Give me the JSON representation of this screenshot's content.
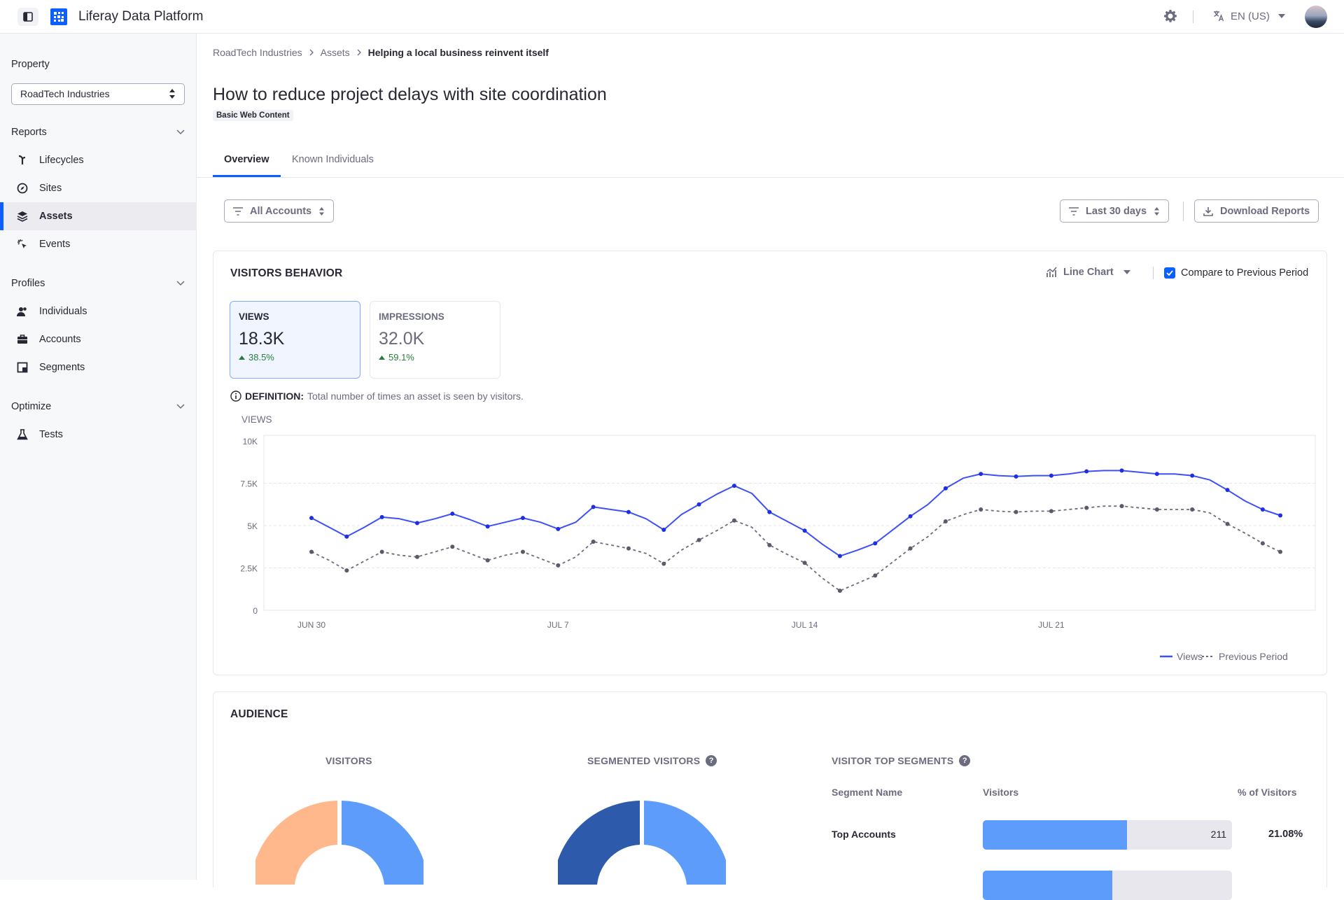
{
  "app": {
    "title": "Liferay Data Platform"
  },
  "topbar": {
    "language": "EN (US)"
  },
  "sidebar": {
    "property_label": "Property",
    "property_value": "RoadTech Industries",
    "sections": [
      {
        "label": "Reports",
        "items": [
          {
            "label": "Lifecycles",
            "icon": "lifecycles-icon"
          },
          {
            "label": "Sites",
            "icon": "compass-icon"
          },
          {
            "label": "Assets",
            "icon": "layers-icon",
            "active": true
          },
          {
            "label": "Events",
            "icon": "click-icon"
          }
        ]
      },
      {
        "label": "Profiles",
        "items": [
          {
            "label": "Individuals",
            "icon": "users-icon"
          },
          {
            "label": "Accounts",
            "icon": "briefcase-icon"
          },
          {
            "label": "Segments",
            "icon": "segments-icon"
          }
        ]
      },
      {
        "label": "Optimize",
        "items": [
          {
            "label": "Tests",
            "icon": "flask-icon"
          }
        ]
      }
    ]
  },
  "breadcrumb": [
    "RoadTech Industries",
    "Assets",
    "Helping a local business reinvent itself"
  ],
  "page": {
    "title": "How to reduce project delays with site coordination",
    "badge": "Basic Web Content",
    "tabs": [
      "Overview",
      "Known Individuals"
    ]
  },
  "filters": {
    "accounts": "All Accounts",
    "range": "Last 30 days",
    "download": "Download Reports"
  },
  "visitors_behavior": {
    "title": "VISITORS BEHAVIOR",
    "chart_type": "Line Chart",
    "compare_label": "Compare to Previous Period",
    "metrics": [
      {
        "label": "VIEWS",
        "value": "18.3K",
        "change": "38.5%"
      },
      {
        "label": "IMPRESSIONS",
        "value": "32.0K",
        "change": "59.1%"
      }
    ],
    "definition_label": "DEFINITION:",
    "definition_text": "Total number of times an asset is seen by visitors.",
    "colors": {
      "views": "#3e50f7",
      "previous": "#6b6c7e"
    }
  },
  "chart_data": {
    "type": "line",
    "ylabel": "VIEWS",
    "ylim": [
      0,
      10000
    ],
    "y_ticks": [
      "0",
      "2.5K",
      "5K",
      "7.5K",
      "10K"
    ],
    "x_ticks": [
      "JUN 30",
      "JUL 7",
      "JUL 14",
      "JUL 21"
    ],
    "x_tick_index": [
      0,
      14,
      28,
      42
    ],
    "legend": [
      "Views",
      "Previous Period"
    ],
    "series": [
      {
        "name": "Views",
        "style": "solid",
        "values": [
          5450,
          4900,
          4350,
          4900,
          5500,
          5400,
          5150,
          5400,
          5700,
          5350,
          4950,
          5200,
          5450,
          5200,
          4800,
          5200,
          6100,
          5950,
          5800,
          5400,
          4750,
          5650,
          6250,
          6850,
          7350,
          6900,
          5800,
          5250,
          4700,
          3900,
          3200,
          3550,
          3950,
          4750,
          5550,
          6250,
          7200,
          7800,
          8050,
          7950,
          7900,
          7950,
          7950,
          8050,
          8200,
          8250,
          8250,
          8150,
          8050,
          8050,
          7950,
          7700,
          7100,
          6450,
          5950,
          5600
        ]
      },
      {
        "name": "Previous Period",
        "style": "dashed",
        "values": [
          3450,
          2950,
          2350,
          2900,
          3450,
          3250,
          3150,
          3450,
          3750,
          3350,
          2950,
          3250,
          3450,
          3050,
          2650,
          3150,
          4050,
          3850,
          3650,
          3350,
          2750,
          3550,
          4150,
          4700,
          5300,
          4900,
          3850,
          3300,
          2800,
          1900,
          1150,
          1600,
          2050,
          2850,
          3650,
          4350,
          5250,
          5650,
          5950,
          5850,
          5800,
          5850,
          5850,
          5950,
          6050,
          6150,
          6150,
          6050,
          5950,
          5950,
          5950,
          5750,
          5100,
          4550,
          3950,
          3450
        ]
      }
    ]
  },
  "audience": {
    "title": "AUDIENCE",
    "visitors_title": "VISITORS",
    "segmented_title": "SEGMENTED VISITORS",
    "top_segments_title": "VISITOR TOP SEGMENTS",
    "table_headers": [
      "Segment Name",
      "Visitors",
      "% of Visitors"
    ],
    "rows": [
      {
        "name": "Top Accounts",
        "visitors": "211",
        "pct": "21.08%",
        "fill": 0.58
      }
    ],
    "partial_row_fill": 0.52,
    "donut_colors": {
      "orange": "#ffb88c",
      "light_blue": "#5d9cfa",
      "dark_blue": "#2e5aac"
    }
  }
}
